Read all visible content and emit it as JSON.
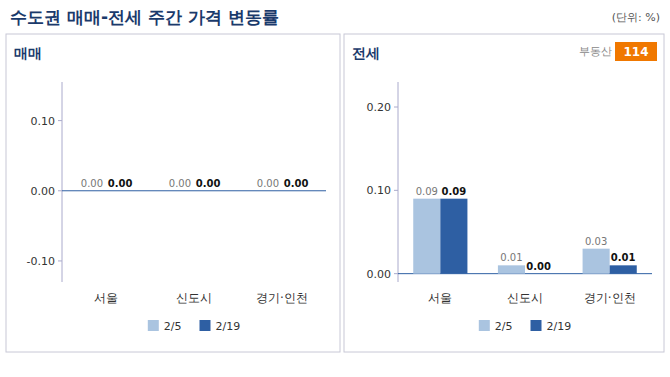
{
  "title": "수도권 매매-전세 주간 가격 변동률",
  "annotations": [
    "(단위: %)",
    "부동산",
    "114"
  ],
  "chart_data": [
    {
      "type": "bar",
      "title": "매매",
      "categories": [
        "서울",
        "신도시",
        "경기·인천"
      ],
      "series": [
        {
          "name": "2/5",
          "color": "#aac4e0",
          "values": [
            0.0,
            0.0,
            0.0
          ],
          "value_labels": [
            "0.00",
            "0.00",
            "0.00"
          ]
        },
        {
          "name": "2/19",
          "color": "#2e5fa3",
          "values": [
            0.0,
            0.0,
            0.0
          ],
          "value_labels": [
            "0.00",
            "0.00",
            "0.00"
          ]
        }
      ],
      "ylim": [
        -0.13,
        0.155
      ],
      "yticks": [
        {
          "value": -0.1,
          "label": "-0.10"
        },
        {
          "value": 0.0,
          "label": "0.00"
        },
        {
          "value": 0.1,
          "label": "0.10"
        }
      ],
      "grid": false,
      "legend": "bottom",
      "data_labels": true
    },
    {
      "type": "bar",
      "title": "전세",
      "categories": [
        "서울",
        "신도시",
        "경기·인천"
      ],
      "series": [
        {
          "name": "2/5",
          "color": "#aac4e0",
          "values": [
            0.09,
            0.01,
            0.03
          ],
          "value_labels": [
            "0.09",
            "0.01",
            "0.03"
          ]
        },
        {
          "name": "2/19",
          "color": "#2e5fa3",
          "values": [
            0.09,
            0.0,
            0.01
          ],
          "value_labels": [
            "0.09",
            "0.00",
            "0.01"
          ]
        }
      ],
      "ylim": [
        -0.01,
        0.23
      ],
      "yticks": [
        {
          "value": 0.0,
          "label": "0.00"
        },
        {
          "value": 0.1,
          "label": "0.10"
        },
        {
          "value": 0.2,
          "label": "0.20"
        }
      ],
      "grid": false,
      "legend": "bottom",
      "data_labels": true
    }
  ]
}
